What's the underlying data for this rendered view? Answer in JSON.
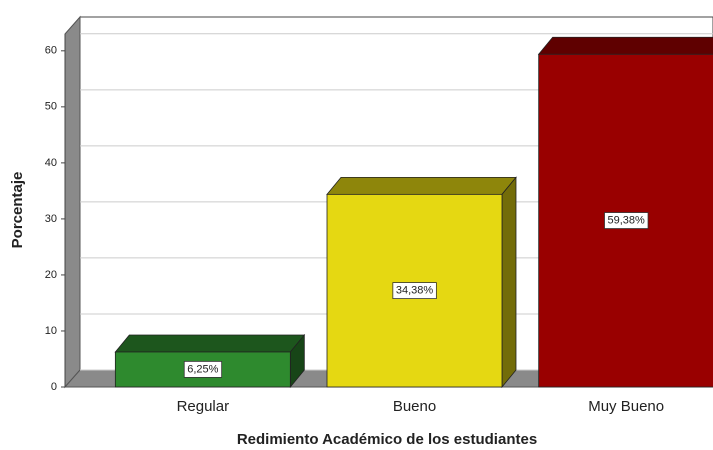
{
  "chart_data": {
    "type": "bar3d",
    "categories": [
      "Regular",
      "Bueno",
      "Muy Bueno"
    ],
    "values": [
      6.25,
      34.38,
      59.38
    ],
    "value_labels": [
      "6,25%",
      "34,38%",
      "59,38%"
    ],
    "colors": [
      "#2e8a2e",
      "#e5d812",
      "#990000"
    ],
    "y_label": "Porcentaje",
    "x_label": "Redimiento Académico de los estudiantes",
    "ylim": [
      0,
      63
    ],
    "yticks": [
      0,
      10,
      20,
      30,
      40,
      50,
      60
    ],
    "grid": true
  }
}
